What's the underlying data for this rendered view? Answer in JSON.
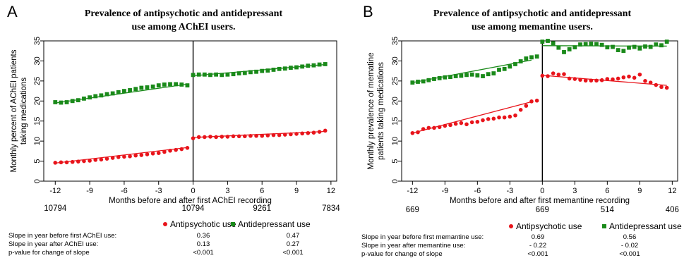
{
  "chart_data": [
    {
      "type": "scatter",
      "panel_label": "A",
      "title_line1": "Prevalence of antipsychotic and antidepressant",
      "title_line2": "use among AChEI users.",
      "xlabel": "Months before and after first AChEI recording",
      "ylabel_line1": "Monthly percent of AChEI patients",
      "ylabel_line2": "taking medications",
      "xlim": [
        -13,
        12.5
      ],
      "ylim": [
        0,
        35
      ],
      "xticks": [
        -12,
        -9,
        -6,
        -3,
        0,
        3,
        6,
        9,
        12
      ],
      "yticks": [
        0,
        5,
        10,
        15,
        20,
        25,
        30,
        35
      ],
      "cutpoint": 0,
      "n_at_risk": [
        {
          "x": -12,
          "label": "10794"
        },
        {
          "x": 0,
          "label": "10794"
        },
        {
          "x": 6,
          "label": "9261"
        },
        {
          "x": 12,
          "label": "7834"
        }
      ],
      "series": [
        {
          "name": "Antipsychotic use",
          "color": "#e8141b",
          "marker": "circle",
          "x": [
            -12,
            -11.5,
            -11,
            -10.5,
            -10,
            -9.5,
            -9,
            -8.5,
            -8,
            -7.5,
            -7,
            -6.5,
            -6,
            -5.5,
            -5,
            -4.5,
            -4,
            -3.5,
            -3,
            -2.5,
            -2,
            -1.5,
            -1,
            -0.5,
            0,
            0.5,
            1,
            1.5,
            2,
            2.5,
            3,
            3.5,
            4,
            4.5,
            5,
            5.5,
            6,
            6.5,
            7,
            7.5,
            8,
            8.5,
            9,
            9.5,
            10,
            10.5,
            11,
            11.5
          ],
          "y": [
            4.6,
            4.7,
            4.7,
            4.8,
            4.9,
            5.0,
            5.1,
            5.3,
            5.4,
            5.6,
            5.8,
            6.0,
            6.1,
            6.2,
            6.4,
            6.5,
            6.7,
            6.9,
            7.0,
            7.3,
            7.6,
            7.8,
            8.0,
            8.3,
            10.7,
            11.0,
            11.0,
            11.1,
            11.0,
            11.1,
            11.1,
            11.2,
            11.2,
            11.2,
            11.3,
            11.3,
            11.3,
            11.4,
            11.5,
            11.5,
            11.6,
            11.7,
            11.8,
            11.9,
            12.0,
            12.1,
            12.3,
            12.6
          ],
          "fit_before": [
            [
              -12,
              4.5
            ],
            [
              -0.5,
              8.4
            ]
          ],
          "fit_after": [
            [
              0,
              10.9
            ],
            [
              11.5,
              12.4
            ]
          ]
        },
        {
          "name": "Antidepressant use",
          "color": "#1a8a1a",
          "marker": "square",
          "x": [
            -12,
            -11.5,
            -11,
            -10.5,
            -10,
            -9.5,
            -9,
            -8.5,
            -8,
            -7.5,
            -7,
            -6.5,
            -6,
            -5.5,
            -5,
            -4.5,
            -4,
            -3.5,
            -3,
            -2.5,
            -2,
            -1.5,
            -1,
            -0.5,
            0,
            0.5,
            1,
            1.5,
            2,
            2.5,
            3,
            3.5,
            4,
            4.5,
            5,
            5.5,
            6,
            6.5,
            7,
            7.5,
            8,
            8.5,
            9,
            9.5,
            10,
            10.5,
            11,
            11.5
          ],
          "y": [
            19.7,
            19.6,
            19.7,
            20.0,
            20.2,
            20.6,
            20.9,
            21.2,
            21.4,
            21.7,
            21.9,
            22.2,
            22.5,
            22.7,
            23.0,
            23.3,
            23.4,
            23.6,
            23.9,
            24.1,
            24.2,
            24.2,
            24.1,
            23.9,
            26.5,
            26.6,
            26.6,
            26.5,
            26.6,
            26.5,
            26.6,
            26.7,
            26.9,
            27.0,
            27.2,
            27.3,
            27.5,
            27.6,
            27.8,
            28.0,
            28.1,
            28.3,
            28.4,
            28.6,
            28.8,
            28.9,
            29.1,
            29.2
          ],
          "fit_before": [
            [
              -12,
              19.5
            ],
            [
              -0.5,
              24.2
            ]
          ],
          "fit_after": [
            [
              0,
              26.3
            ],
            [
              11.5,
              29.1
            ]
          ]
        }
      ],
      "stats_table": {
        "rows": [
          {
            "label": "Slope in year before first AChEI use:",
            "antipsychotic": "0.36",
            "antidepressant": "0.47"
          },
          {
            "label": "Slope in year after AChEI use:",
            "antipsychotic": "0.13",
            "antidepressant": "0.27"
          },
          {
            "label": "p-value for change of slope",
            "antipsychotic": "<0.001",
            "antidepressant": "<0.001"
          }
        ]
      },
      "grid": false,
      "legend_placement": "bottom-right"
    },
    {
      "type": "scatter",
      "panel_label": "B",
      "title_line1": "Prevalence of antipsychotic and antidepressant",
      "title_line2": "use among memantine users.",
      "xlabel": "Months before and after first memantine recording",
      "ylabel_line1": "Monthly prevalence of mematine",
      "ylabel_line2": "patients taking medications",
      "xlim": [
        -13,
        12.5
      ],
      "ylim": [
        0,
        35
      ],
      "xticks": [
        -12,
        -9,
        -6,
        -3,
        0,
        3,
        6,
        9,
        12
      ],
      "yticks": [
        0,
        5,
        10,
        15,
        20,
        25,
        30,
        35
      ],
      "cutpoint": 0,
      "n_at_risk": [
        {
          "x": -12,
          "label": "669"
        },
        {
          "x": 0,
          "label": "669"
        },
        {
          "x": 6,
          "label": "514"
        },
        {
          "x": 12,
          "label": "406"
        }
      ],
      "series": [
        {
          "name": "Antipsychotic use",
          "color": "#e8141b",
          "marker": "circle",
          "x": [
            -12,
            -11.5,
            -11,
            -10.5,
            -10,
            -9.5,
            -9,
            -8.5,
            -8,
            -7.5,
            -7,
            -6.5,
            -6,
            -5.5,
            -5,
            -4.5,
            -4,
            -3.5,
            -3,
            -2.5,
            -2,
            -1.5,
            -1,
            -0.5,
            0,
            0.5,
            1,
            1.5,
            2,
            2.5,
            3,
            3.5,
            4,
            4.5,
            5,
            5.5,
            6,
            6.5,
            7,
            7.5,
            8,
            8.5,
            9,
            9.5,
            10,
            10.5,
            11,
            11.5
          ],
          "y": [
            12.0,
            12.2,
            13.0,
            13.3,
            13.3,
            13.5,
            13.8,
            14.0,
            14.3,
            14.5,
            14.2,
            14.7,
            14.8,
            15.2,
            15.5,
            15.6,
            15.9,
            15.9,
            16.1,
            16.4,
            17.8,
            18.8,
            19.9,
            20.1,
            26.3,
            26.2,
            26.9,
            26.6,
            26.7,
            25.6,
            25.5,
            25.3,
            25.1,
            25.1,
            25.1,
            25.2,
            25.5,
            25.4,
            25.6,
            25.9,
            26.1,
            25.8,
            26.6,
            25.0,
            24.6,
            24.0,
            23.5,
            23.3
          ],
          "fit_before": [
            [
              -12,
              12.0
            ],
            [
              -1,
              19.8
            ]
          ],
          "fit_after": [
            [
              0,
              26.4
            ],
            [
              11.5,
              23.9
            ]
          ]
        },
        {
          "name": "Antidepressant use",
          "color": "#1a8a1a",
          "marker": "square",
          "x": [
            -12,
            -11.5,
            -11,
            -10.5,
            -10,
            -9.5,
            -9,
            -8.5,
            -8,
            -7.5,
            -7,
            -6.5,
            -6,
            -5.5,
            -5,
            -4.5,
            -4,
            -3.5,
            -3,
            -2.5,
            -2,
            -1.5,
            -1,
            -0.5,
            0,
            0.5,
            1,
            1.5,
            2,
            2.5,
            3,
            3.5,
            4,
            4.5,
            5,
            5.5,
            6,
            6.5,
            7,
            7.5,
            8,
            8.5,
            9,
            9.5,
            10,
            10.5,
            11,
            11.5
          ],
          "y": [
            24.6,
            24.8,
            24.9,
            25.2,
            25.5,
            25.7,
            25.9,
            26.0,
            26.2,
            26.3,
            26.5,
            26.6,
            26.4,
            26.2,
            26.7,
            26.9,
            27.8,
            28.0,
            28.6,
            29.2,
            29.9,
            30.6,
            30.9,
            31.1,
            34.8,
            35.0,
            34.4,
            33.3,
            32.2,
            32.9,
            33.4,
            34.1,
            34.2,
            34.3,
            34.2,
            34.0,
            33.4,
            33.5,
            32.7,
            32.5,
            33.3,
            33.5,
            33.1,
            33.6,
            33.5,
            34.1,
            33.9,
            34.8
          ],
          "fit_before": [
            [
              -12,
              24.6
            ],
            [
              -1,
              30.2
            ]
          ],
          "fit_after": [
            [
              0,
              33.8
            ],
            [
              11.5,
              33.7
            ]
          ]
        }
      ],
      "stats_table": {
        "rows": [
          {
            "label": "Slope in year before first memantine use:",
            "antipsychotic": "0.69",
            "antidepressant": "0.56"
          },
          {
            "label": "Slope in year after memantine use:",
            "antipsychotic": "- 0.22",
            "antidepressant": "- 0.02"
          },
          {
            "label": "p-value for change of slope",
            "antipsychotic": "<0.001",
            "antidepressant": "<0.001"
          }
        ]
      },
      "grid": false,
      "legend_placement": "bottom-right"
    }
  ]
}
